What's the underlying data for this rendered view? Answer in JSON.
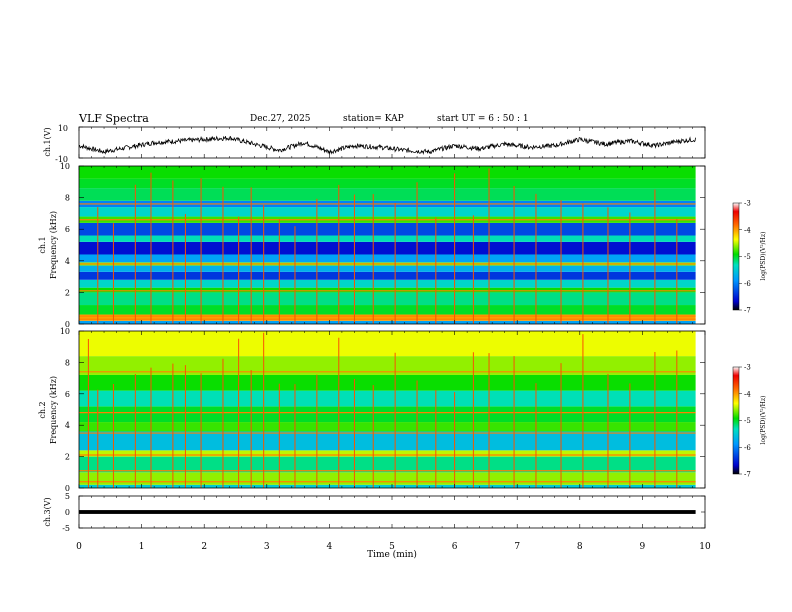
{
  "header": {
    "title": "VLF Spectra",
    "date": "Dec.27, 2025",
    "station": "station= KAP",
    "start": "start  UT  =   6  : 50 : 1"
  },
  "chart_data": [
    {
      "type": "line",
      "id": "ch1-voltage",
      "ylabel": "ch.1(V)",
      "ylim": [
        -10,
        10
      ],
      "yticks": [
        10,
        -10
      ],
      "xlim": [
        0,
        10
      ],
      "trace_end_min": 9.85,
      "x_minutes": [
        0.0,
        0.4,
        0.8,
        1.2,
        1.6,
        2.0,
        2.4,
        2.8,
        3.2,
        3.6,
        4.0,
        4.4,
        4.8,
        5.2,
        5.6,
        6.0,
        6.4,
        6.8,
        7.2,
        7.6,
        8.0,
        8.4,
        8.8,
        9.2,
        9.6,
        9.85
      ],
      "y_volts": [
        -2,
        -6,
        -3,
        0,
        1,
        2,
        3,
        -1,
        -5,
        0,
        -6,
        -2,
        -3,
        -5,
        -6,
        -2,
        -4,
        -1,
        -3,
        -2,
        2,
        -1,
        1,
        -2,
        1,
        2
      ]
    },
    {
      "type": "heatmap",
      "id": "ch1-spectrogram",
      "ylabel": "ch.1",
      "ylabel2": "Frequency (kHz)",
      "ylim": [
        0,
        10
      ],
      "yticks": [
        0,
        2,
        4,
        6,
        8,
        10
      ],
      "xlim": [
        0,
        10
      ],
      "data_end_min": 9.85,
      "colorbar": {
        "range": [
          -7,
          -3
        ],
        "ticks": [
          -3,
          -4,
          -5,
          -6,
          -7
        ],
        "label": "log(PSD)(V²/Hz)"
      },
      "bands_khz": [
        {
          "from": 0.0,
          "to": 0.2,
          "log_psd": -5.8
        },
        {
          "from": 0.2,
          "to": 0.6,
          "log_psd": -4.0
        },
        {
          "from": 0.6,
          "to": 1.2,
          "log_psd": -5.0
        },
        {
          "from": 1.2,
          "to": 2.0,
          "log_psd": -5.2
        },
        {
          "from": 2.0,
          "to": 2.3,
          "log_psd": -4.9
        },
        {
          "from": 2.3,
          "to": 2.8,
          "log_psd": -5.4
        },
        {
          "from": 2.8,
          "to": 3.3,
          "log_psd": -6.4
        },
        {
          "from": 3.3,
          "to": 3.7,
          "log_psd": -5.7
        },
        {
          "from": 3.7,
          "to": 3.9,
          "log_psd": -4.6
        },
        {
          "from": 3.9,
          "to": 4.4,
          "log_psd": -5.8
        },
        {
          "from": 4.4,
          "to": 5.2,
          "log_psd": -6.6
        },
        {
          "from": 5.2,
          "to": 5.6,
          "log_psd": -5.3
        },
        {
          "from": 5.6,
          "to": 6.4,
          "log_psd": -6.3
        },
        {
          "from": 6.4,
          "to": 6.8,
          "log_psd": -4.8
        },
        {
          "from": 6.8,
          "to": 7.4,
          "log_psd": -5.4
        },
        {
          "from": 7.4,
          "to": 7.8,
          "log_psd": -6.0
        },
        {
          "from": 7.8,
          "to": 8.6,
          "log_psd": -5.1
        },
        {
          "from": 8.6,
          "to": 9.2,
          "log_psd": -5.0
        },
        {
          "from": 9.2,
          "to": 10.0,
          "log_psd": -4.9
        }
      ],
      "strong_lines_khz": [
        0.3,
        0.5,
        2.1,
        3.8,
        6.6,
        7.6
      ],
      "sferic_times_min": [
        0.3,
        0.55,
        0.9,
        1.15,
        1.5,
        1.7,
        1.95,
        2.3,
        2.55,
        2.75,
        2.95,
        3.2,
        3.45,
        3.8,
        4.15,
        4.4,
        4.7,
        5.05,
        5.4,
        5.7,
        6.0,
        6.3,
        6.55,
        6.95,
        7.3,
        7.7,
        8.05,
        8.45,
        8.8,
        9.2,
        9.55
      ]
    },
    {
      "type": "heatmap",
      "id": "ch2-spectrogram",
      "ylabel": "ch.2",
      "ylabel2": "Frequency (kHz)",
      "ylim": [
        0,
        10
      ],
      "yticks": [
        0,
        2,
        4,
        6,
        8,
        10
      ],
      "xlim": [
        0,
        10
      ],
      "data_end_min": 9.85,
      "colorbar": {
        "range": [
          -7,
          -3
        ],
        "ticks": [
          -3,
          -4,
          -5,
          -6,
          -7
        ],
        "label": "log(PSD)(V²/Hz)"
      },
      "bands_khz": [
        {
          "from": 0.0,
          "to": 0.2,
          "log_psd": -5.5
        },
        {
          "from": 0.2,
          "to": 1.0,
          "log_psd": -4.6
        },
        {
          "from": 1.0,
          "to": 2.0,
          "log_psd": -5.2
        },
        {
          "from": 2.0,
          "to": 2.4,
          "log_psd": -4.5
        },
        {
          "from": 2.4,
          "to": 3.6,
          "log_psd": -5.6
        },
        {
          "from": 3.6,
          "to": 4.2,
          "log_psd": -4.8
        },
        {
          "from": 4.2,
          "to": 5.2,
          "log_psd": -5.0
        },
        {
          "from": 5.2,
          "to": 6.2,
          "log_psd": -5.3
        },
        {
          "from": 6.2,
          "to": 7.2,
          "log_psd": -4.9
        },
        {
          "from": 7.2,
          "to": 8.4,
          "log_psd": -4.6
        },
        {
          "from": 8.4,
          "to": 10.0,
          "log_psd": -4.4
        }
      ],
      "strong_lines_khz": [
        0.4,
        1.1,
        2.1,
        3.5,
        4.8,
        7.4
      ],
      "sferic_times_min": [
        0.15,
        0.3,
        0.55,
        0.9,
        1.15,
        1.5,
        1.7,
        1.95,
        2.3,
        2.55,
        2.75,
        2.95,
        3.2,
        3.45,
        3.8,
        4.15,
        4.4,
        4.7,
        5.05,
        5.4,
        5.7,
        6.0,
        6.3,
        6.55,
        6.95,
        7.3,
        7.7,
        8.05,
        8.45,
        8.8,
        9.2,
        9.55
      ]
    },
    {
      "type": "line",
      "id": "ch3-voltage",
      "ylabel": "ch.3(V)",
      "ylim": [
        -5,
        5
      ],
      "yticks": [
        5,
        0,
        -5
      ],
      "xlim": [
        0,
        10
      ],
      "trace_end_min": 9.85,
      "x_minutes": [
        0,
        9.85
      ],
      "y_volts": [
        0,
        0
      ],
      "band_halfwidth_volts": 0.6
    }
  ],
  "xaxis": {
    "label": "Time  (min)",
    "ticks": [
      0,
      1,
      2,
      3,
      4,
      5,
      6,
      7,
      8,
      9,
      10
    ]
  }
}
